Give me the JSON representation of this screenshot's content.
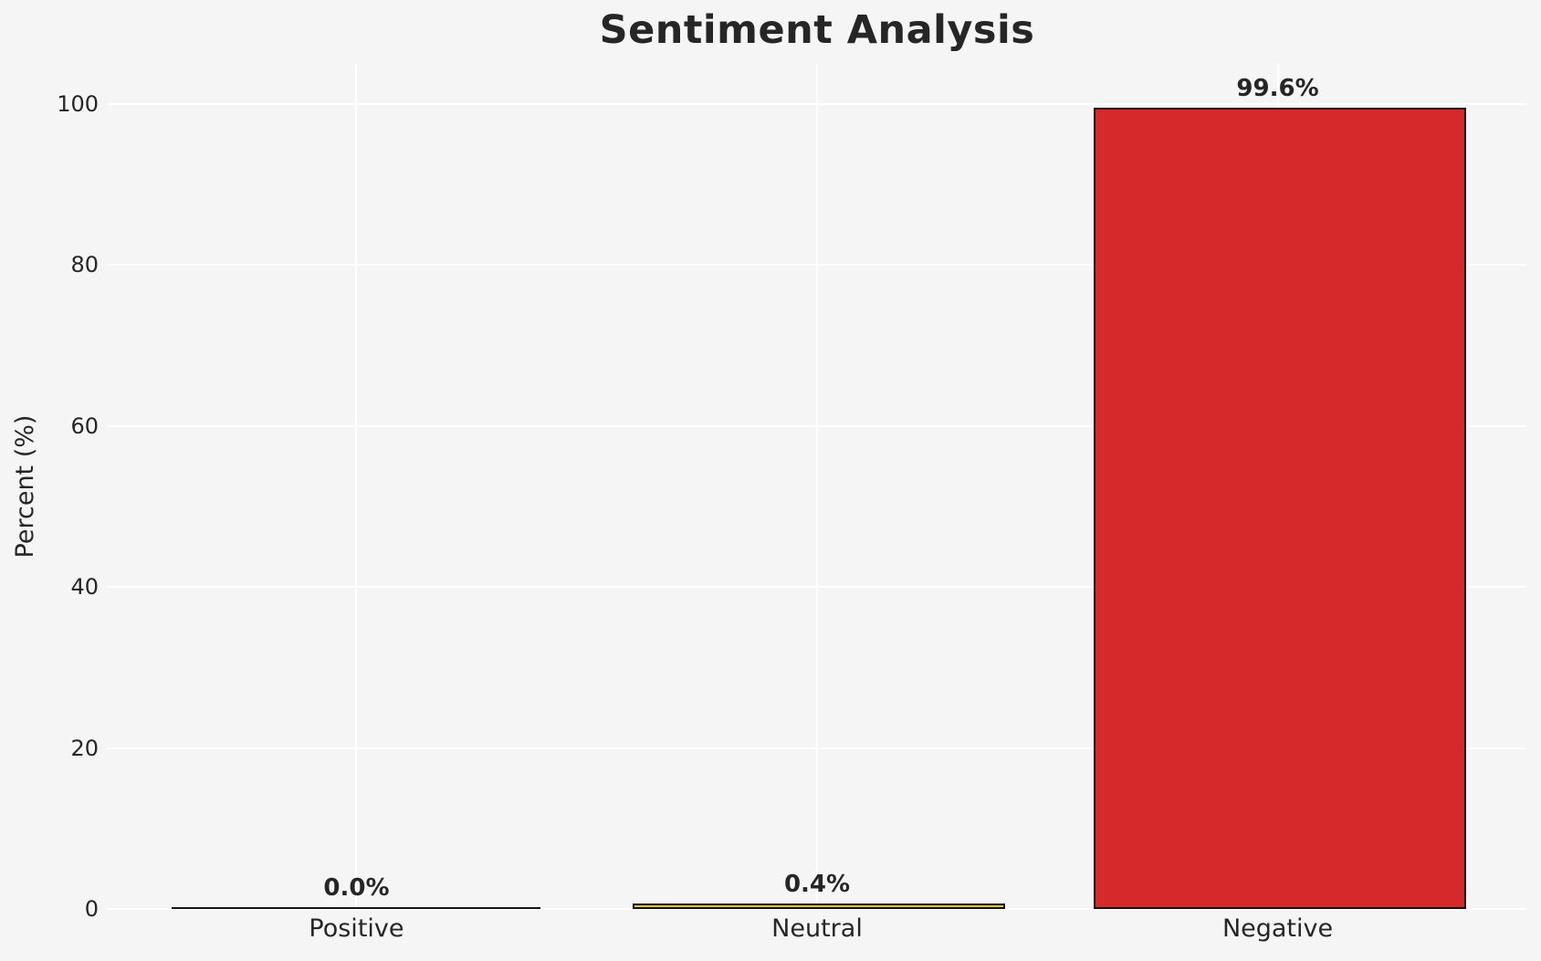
{
  "chart_data": {
    "type": "bar",
    "title": "Sentiment Analysis",
    "xlabel": "",
    "ylabel": "Percent (%)",
    "categories": [
      "Positive",
      "Neutral",
      "Negative"
    ],
    "values": [
      0.0,
      0.4,
      99.6
    ],
    "value_labels": [
      "0.0%",
      "0.4%",
      "99.6%"
    ],
    "yticks": [
      0,
      20,
      40,
      60,
      80,
      100
    ],
    "ytick_labels": [
      "0",
      "20",
      "40",
      "60",
      "80",
      "100"
    ],
    "ylim": [
      0,
      105
    ],
    "xlim": [
      -0.54,
      2.54
    ],
    "bar_width": 0.8,
    "grid": true,
    "legend": "none",
    "bar_colors": [
      null,
      "#e3c53d",
      "#d5292b"
    ],
    "bar_edge_color": "#141414",
    "background_color": "#f5f5f6",
    "gridline_color": "#ffffff",
    "text_color": "#262626"
  }
}
